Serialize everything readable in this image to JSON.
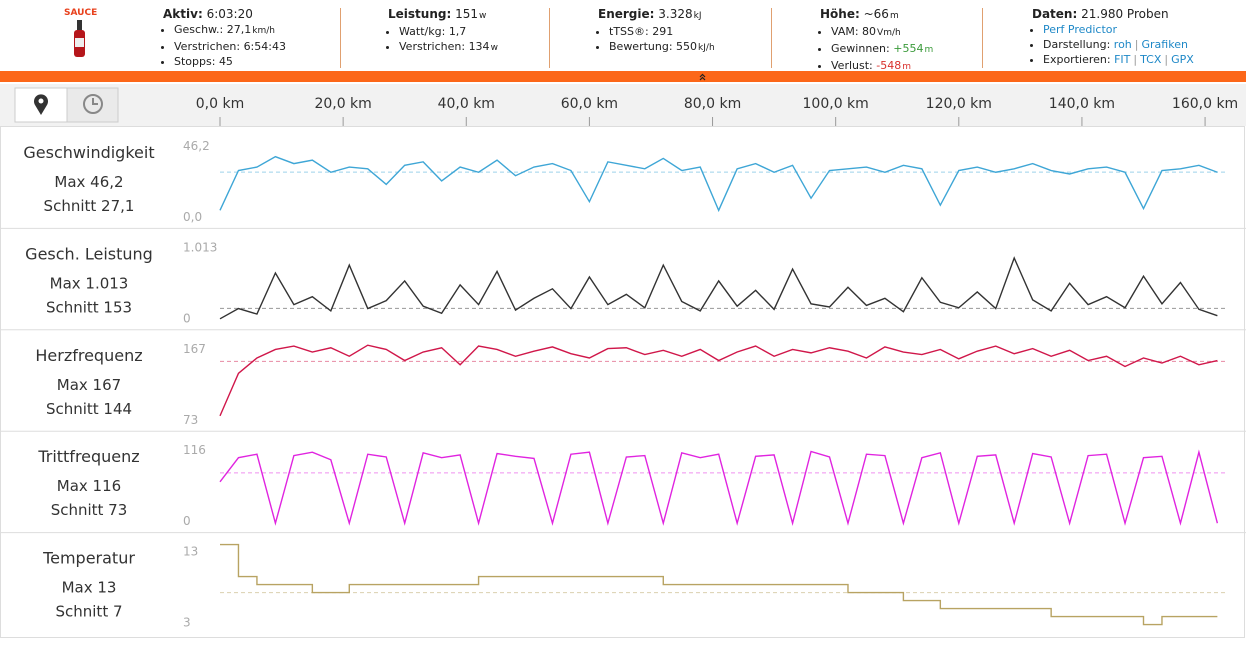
{
  "header": {
    "logo": "SAUCE",
    "separator": "|",
    "blocks": [
      {
        "title": "Aktiv:",
        "value": "6:03:20",
        "items": [
          {
            "label": "Geschw.:",
            "value": "27,1",
            "unit": "km/h"
          },
          {
            "label": "Verstrichen:",
            "value": "6:54:43"
          },
          {
            "label": "Stopps:",
            "value": "45"
          }
        ]
      },
      {
        "title": "Leistung:",
        "value": "151",
        "unit": "w",
        "items": [
          {
            "label": "Watt/kg:",
            "value": "1,7"
          },
          {
            "label": "Verstrichen:",
            "value": "134",
            "unit": "w"
          }
        ]
      },
      {
        "title": "Energie:",
        "value": "3.328",
        "unit": "kJ",
        "items": [
          {
            "label": "tTSS®:",
            "value": "291"
          },
          {
            "label": "Bewertung:",
            "value": "550",
            "unit": "kJ/h"
          }
        ]
      },
      {
        "title": "Höhe:",
        "value": "~66",
        "unit": "m",
        "items": [
          {
            "label": "VAM:",
            "value": "80",
            "unit": "Vm/h"
          },
          {
            "label": "Gewinnen:",
            "value": "+554",
            "unit": "m",
            "color": "#3a9a3a"
          },
          {
            "label": "Verlust:",
            "value": "-548",
            "unit": "m",
            "color": "#d9302c"
          }
        ]
      },
      {
        "title": "Daten:",
        "value": "21.980 Proben",
        "items": [
          {
            "links": [
              "Perf Predictor"
            ]
          },
          {
            "label": "Darstellung:",
            "links": [
              "roh",
              "Grafiken"
            ]
          },
          {
            "label": "Exportieren:",
            "links": [
              "FIT",
              "TCX",
              "GPX"
            ]
          }
        ]
      }
    ]
  },
  "distance_axis": {
    "xlim": [
      0,
      163.4
    ],
    "xticks": [
      {
        "value": 0,
        "label": "0,0 km"
      },
      {
        "value": 20,
        "label": "20,0 km"
      },
      {
        "value": 40,
        "label": "40,0 km"
      },
      {
        "value": 60,
        "label": "60,0 km"
      },
      {
        "value": 80,
        "label": "80,0 km"
      },
      {
        "value": 100,
        "label": "100,0 km"
      },
      {
        "value": 120,
        "label": "120,0 km"
      },
      {
        "value": 140,
        "label": "140,0 km"
      },
      {
        "value": 160,
        "label": "160,0 km"
      }
    ]
  },
  "chart_data": [
    {
      "type": "line",
      "title": "Geschwindigkeit",
      "max": "Max 46,2",
      "avg": {
        "value": 27.1,
        "label": "Schnitt 27,1"
      },
      "color": "#3ea6d6",
      "ylim": [
        {
          "value": 0,
          "label": "0,0"
        },
        {
          "value": 46.2,
          "label": "46,2"
        }
      ],
      "x": [
        0,
        3,
        6,
        9,
        12,
        15,
        18,
        21,
        24,
        27,
        30,
        33,
        36,
        39,
        42,
        45,
        48,
        51,
        54,
        57,
        60,
        63,
        66,
        69,
        72,
        75,
        78,
        81,
        84,
        87,
        90,
        93,
        96,
        99,
        102,
        105,
        108,
        111,
        114,
        117,
        120,
        123,
        126,
        129,
        132,
        135,
        138,
        141,
        144,
        147,
        150,
        153,
        156,
        159,
        162
      ],
      "values": [
        5,
        28,
        30,
        36,
        32,
        34,
        27,
        30,
        29,
        20,
        31,
        33,
        22,
        30,
        27,
        34,
        25,
        30,
        32,
        28,
        10,
        33,
        31,
        29,
        35,
        28,
        30,
        5,
        29,
        32,
        27,
        31,
        12,
        28,
        29,
        30,
        27,
        31,
        29,
        8,
        28,
        30,
        27,
        29,
        32,
        28,
        26,
        29,
        30,
        27,
        6,
        28,
        29,
        31,
        27
      ]
    },
    {
      "type": "line",
      "title": "Gesch. Leistung",
      "max": "Max 1.013",
      "avg": {
        "value": 153,
        "label": "Schnitt 153"
      },
      "color": "#333333",
      "ylim": [
        0,
        {
          "value": 1013,
          "label": "1.013"
        }
      ],
      "x": [
        0,
        3,
        6,
        9,
        12,
        15,
        18,
        21,
        24,
        27,
        30,
        33,
        36,
        39,
        42,
        45,
        48,
        51,
        54,
        57,
        60,
        63,
        66,
        69,
        72,
        75,
        78,
        81,
        84,
        87,
        90,
        93,
        96,
        99,
        102,
        105,
        108,
        111,
        114,
        117,
        120,
        123,
        126,
        129,
        132,
        135,
        138,
        141,
        144,
        147,
        150,
        153,
        156,
        159,
        162
      ],
      "values": [
        20,
        150,
        80,
        600,
        200,
        300,
        120,
        700,
        150,
        250,
        500,
        180,
        90,
        450,
        200,
        620,
        130,
        280,
        400,
        150,
        550,
        200,
        330,
        160,
        700,
        240,
        120,
        500,
        180,
        380,
        140,
        650,
        210,
        170,
        420,
        190,
        280,
        110,
        540,
        230,
        160,
        360,
        150,
        790,
        260,
        120,
        470,
        200,
        300,
        160,
        560,
        210,
        480,
        140,
        60
      ]
    },
    {
      "type": "line",
      "title": "Herzfrequenz",
      "max": "Max 167",
      "avg": {
        "value": 144,
        "label": "Schnitt 144"
      },
      "color": "#d0174a",
      "ylim": [
        73,
        167
      ],
      "x": [
        0,
        3,
        6,
        9,
        12,
        15,
        18,
        21,
        24,
        27,
        30,
        33,
        36,
        39,
        42,
        45,
        48,
        51,
        54,
        57,
        60,
        63,
        66,
        69,
        72,
        75,
        78,
        81,
        84,
        87,
        90,
        93,
        96,
        99,
        102,
        105,
        108,
        111,
        114,
        117,
        120,
        123,
        126,
        129,
        132,
        135,
        138,
        141,
        144,
        147,
        150,
        153,
        156,
        159,
        162
      ],
      "values": [
        80,
        130,
        148,
        158,
        162,
        155,
        160,
        150,
        163,
        158,
        145,
        155,
        160,
        140,
        162,
        158,
        150,
        156,
        161,
        153,
        148,
        159,
        160,
        152,
        157,
        150,
        158,
        145,
        155,
        162,
        150,
        158,
        154,
        160,
        156,
        148,
        161,
        155,
        152,
        158,
        147,
        156,
        162,
        153,
        159,
        150,
        157,
        145,
        150,
        138,
        148,
        142,
        150,
        140,
        145
      ]
    },
    {
      "type": "line",
      "title": "Trittfrequenz",
      "max": "Max 116",
      "avg": {
        "value": 73,
        "label": "Schnitt 73"
      },
      "color": "#e024e0",
      "ylim": [
        0,
        116
      ],
      "x": [
        0,
        3,
        6,
        9,
        12,
        15,
        18,
        21,
        24,
        27,
        30,
        33,
        36,
        39,
        42,
        45,
        48,
        51,
        54,
        57,
        60,
        63,
        66,
        69,
        72,
        75,
        78,
        81,
        84,
        87,
        90,
        93,
        96,
        99,
        102,
        105,
        108,
        111,
        114,
        117,
        120,
        123,
        126,
        129,
        132,
        135,
        138,
        141,
        144,
        147,
        150,
        153,
        156,
        159,
        162
      ],
      "values": [
        60,
        95,
        100,
        0,
        98,
        103,
        92,
        0,
        100,
        96,
        0,
        102,
        95,
        99,
        0,
        101,
        97,
        94,
        0,
        100,
        103,
        0,
        96,
        98,
        0,
        102,
        95,
        100,
        0,
        97,
        99,
        0,
        104,
        96,
        0,
        100,
        98,
        0,
        95,
        102,
        0,
        97,
        99,
        0,
        101,
        96,
        0,
        98,
        100,
        0,
        95,
        97,
        0,
        103,
        0
      ]
    },
    {
      "type": "step",
      "title": "Temperatur",
      "max": "Max 13",
      "avg": {
        "value": 7,
        "label": "Schnitt 7"
      },
      "color": "#b8a362",
      "ylim": [
        3,
        13
      ],
      "x": [
        0,
        3,
        6,
        9,
        12,
        15,
        18,
        21,
        24,
        27,
        30,
        33,
        36,
        39,
        42,
        45,
        48,
        51,
        54,
        57,
        60,
        63,
        66,
        69,
        72,
        75,
        78,
        81,
        84,
        87,
        90,
        93,
        96,
        99,
        102,
        105,
        108,
        111,
        114,
        117,
        120,
        123,
        126,
        129,
        132,
        135,
        138,
        141,
        144,
        147,
        150,
        153,
        156,
        159,
        162
      ],
      "values": [
        13,
        9,
        8,
        8,
        8,
        7,
        7,
        8,
        8,
        8,
        8,
        8,
        8,
        8,
        9,
        9,
        9,
        9,
        9,
        9,
        9,
        9,
        9,
        9,
        8,
        8,
        8,
        8,
        8,
        8,
        8,
        8,
        8,
        8,
        7,
        7,
        7,
        6,
        6,
        5,
        5,
        5,
        5,
        5,
        5,
        4,
        4,
        4,
        4,
        4,
        3,
        4,
        4,
        4,
        4
      ]
    }
  ]
}
